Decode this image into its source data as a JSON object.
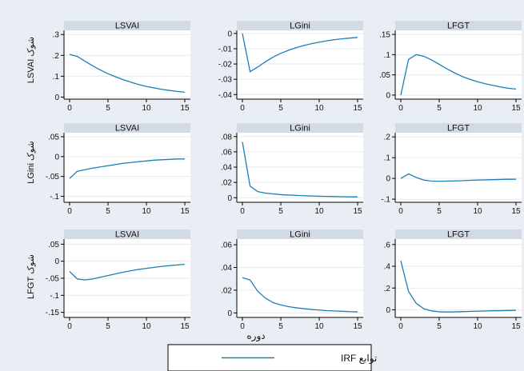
{
  "xlabel": "دوره",
  "legend": {
    "label": "توابع IRF",
    "color": "#1a7fb5"
  },
  "row_labels": [
    "شوک LSVAI",
    "شوک LGini",
    "شوک LFGT"
  ],
  "chart_data": [
    {
      "type": "line",
      "title": "LSVAI",
      "xlim": [
        0,
        15
      ],
      "xticks": [
        0,
        5,
        10,
        15
      ],
      "ylim": [
        -0.01,
        0.32
      ],
      "yticks": [
        0,
        0.1,
        0.2,
        0.3
      ],
      "ytick_labels": [
        "0",
        ".1",
        ".2",
        ".3"
      ],
      "x": [
        0,
        1,
        2,
        3,
        4,
        5,
        6,
        7,
        8,
        9,
        10,
        11,
        12,
        13,
        14,
        15
      ],
      "series": [
        {
          "values": [
            0.205,
            0.195,
            0.172,
            0.15,
            0.13,
            0.112,
            0.097,
            0.083,
            0.071,
            0.06,
            0.051,
            0.044,
            0.037,
            0.032,
            0.027,
            0.023
          ]
        }
      ]
    },
    {
      "type": "line",
      "title": "LGini",
      "xlim": [
        0,
        15
      ],
      "xticks": [
        0,
        5,
        10,
        15
      ],
      "ylim": [
        -0.043,
        0.002
      ],
      "yticks": [
        0,
        -0.01,
        -0.02,
        -0.03,
        -0.04
      ],
      "ytick_labels": [
        "0",
        "-.01",
        "-.02",
        "-.03",
        "-.04"
      ],
      "x": [
        0,
        1,
        2,
        3,
        4,
        5,
        6,
        7,
        8,
        9,
        10,
        11,
        12,
        13,
        14,
        15
      ],
      "series": [
        {
          "values": [
            0,
            -0.025,
            -0.022,
            -0.0185,
            -0.0155,
            -0.013,
            -0.011,
            -0.0093,
            -0.0079,
            -0.0067,
            -0.0057,
            -0.0048,
            -0.0041,
            -0.0035,
            -0.003,
            -0.0026
          ]
        }
      ]
    },
    {
      "type": "line",
      "title": "LFGT",
      "xlim": [
        0,
        15
      ],
      "xticks": [
        0,
        5,
        10,
        15
      ],
      "ylim": [
        -0.01,
        0.16
      ],
      "yticks": [
        0,
        0.05,
        0.1,
        0.15
      ],
      "ytick_labels": [
        "0",
        ".05",
        ".1",
        ".15"
      ],
      "x": [
        0,
        1,
        2,
        3,
        4,
        5,
        6,
        7,
        8,
        9,
        10,
        11,
        12,
        13,
        14,
        15
      ],
      "series": [
        {
          "values": [
            0,
            0.088,
            0.1,
            0.096,
            0.087,
            0.076,
            0.065,
            0.055,
            0.046,
            0.039,
            0.033,
            0.028,
            0.024,
            0.02,
            0.017,
            0.015
          ]
        }
      ]
    },
    {
      "type": "line",
      "title": "LSVAI",
      "xlim": [
        0,
        15
      ],
      "xticks": [
        0,
        5,
        10,
        15
      ],
      "ylim": [
        -0.115,
        0.06
      ],
      "yticks": [
        0.05,
        0,
        -0.05,
        -0.1
      ],
      "ytick_labels": [
        ".05",
        "0",
        "-.05",
        "-.1"
      ],
      "x": [
        0,
        1,
        2,
        3,
        4,
        5,
        6,
        7,
        8,
        9,
        10,
        11,
        12,
        13,
        14,
        15
      ],
      "series": [
        {
          "values": [
            -0.055,
            -0.037,
            -0.033,
            -0.029,
            -0.026,
            -0.023,
            -0.02,
            -0.017,
            -0.015,
            -0.013,
            -0.011,
            -0.009,
            -0.008,
            -0.007,
            -0.006,
            -0.006
          ]
        }
      ]
    },
    {
      "type": "line",
      "title": "LGini",
      "xlim": [
        0,
        15
      ],
      "xticks": [
        0,
        5,
        10,
        15
      ],
      "ylim": [
        -0.006,
        0.085
      ],
      "yticks": [
        0,
        0.02,
        0.04,
        0.06,
        0.08
      ],
      "ytick_labels": [
        "0",
        ".02",
        ".04",
        ".06",
        ".08"
      ],
      "x": [
        0,
        1,
        2,
        3,
        4,
        5,
        6,
        7,
        8,
        9,
        10,
        11,
        12,
        13,
        14,
        15
      ],
      "series": [
        {
          "values": [
            0.073,
            0.015,
            0.008,
            0.006,
            0.005,
            0.004,
            0.0035,
            0.003,
            0.0026,
            0.0022,
            0.0019,
            0.0017,
            0.0015,
            0.0013,
            0.0011,
            0.001
          ]
        }
      ]
    },
    {
      "type": "line",
      "title": "LFGT",
      "xlim": [
        0,
        15
      ],
      "xticks": [
        0,
        5,
        10,
        15
      ],
      "ylim": [
        -0.115,
        0.22
      ],
      "yticks": [
        -0.1,
        0,
        0.1,
        0.2
      ],
      "ytick_labels": [
        "-.1",
        "0",
        ".1",
        ".2"
      ],
      "x": [
        0,
        1,
        2,
        3,
        4,
        5,
        6,
        7,
        8,
        9,
        10,
        11,
        12,
        13,
        14,
        15
      ],
      "series": [
        {
          "values": [
            0,
            0.022,
            0.005,
            -0.008,
            -0.013,
            -0.014,
            -0.013,
            -0.012,
            -0.011,
            -0.009,
            -0.008,
            -0.007,
            -0.006,
            -0.005,
            -0.004,
            -0.004
          ]
        }
      ]
    },
    {
      "type": "line",
      "title": "LSVAI",
      "xlim": [
        0,
        15
      ],
      "xticks": [
        0,
        5,
        10,
        15
      ],
      "ylim": [
        -0.165,
        0.065
      ],
      "yticks": [
        0.05,
        0,
        -0.05,
        -0.1,
        -0.15
      ],
      "ytick_labels": [
        ".05",
        "0",
        "-.05",
        "-.1",
        "-.15"
      ],
      "x": [
        0,
        1,
        2,
        3,
        4,
        5,
        6,
        7,
        8,
        9,
        10,
        11,
        12,
        13,
        14,
        15
      ],
      "series": [
        {
          "values": [
            -0.03,
            -0.052,
            -0.055,
            -0.052,
            -0.047,
            -0.042,
            -0.037,
            -0.032,
            -0.028,
            -0.024,
            -0.021,
            -0.018,
            -0.015,
            -0.013,
            -0.011,
            -0.009
          ]
        }
      ]
    },
    {
      "type": "line",
      "title": "LGini",
      "xlim": [
        0,
        15
      ],
      "xticks": [
        0,
        5,
        10,
        15
      ],
      "ylim": [
        -0.004,
        0.065
      ],
      "yticks": [
        0,
        0.02,
        0.04,
        0.06
      ],
      "ytick_labels": [
        "0",
        ".02",
        ".04",
        ".06"
      ],
      "x": [
        0,
        1,
        2,
        3,
        4,
        5,
        6,
        7,
        8,
        9,
        10,
        11,
        12,
        13,
        14,
        15
      ],
      "series": [
        {
          "values": [
            0.031,
            0.029,
            0.019,
            0.013,
            0.009,
            0.007,
            0.0055,
            0.0045,
            0.0037,
            0.003,
            0.0025,
            0.002,
            0.0017,
            0.0014,
            0.0011,
            0.0009
          ]
        }
      ]
    },
    {
      "type": "line",
      "title": "LFGT",
      "xlim": [
        0,
        15
      ],
      "xticks": [
        0,
        5,
        10,
        15
      ],
      "ylim": [
        -0.07,
        0.65
      ],
      "yticks": [
        0,
        0.2,
        0.4,
        0.6
      ],
      "ytick_labels": [
        "0",
        ".2",
        ".4",
        ".6"
      ],
      "x": [
        0,
        1,
        2,
        3,
        4,
        5,
        6,
        7,
        8,
        9,
        10,
        11,
        12,
        13,
        14,
        15
      ],
      "series": [
        {
          "values": [
            0.45,
            0.17,
            0.06,
            0.01,
            -0.01,
            -0.018,
            -0.02,
            -0.019,
            -0.017,
            -0.015,
            -0.013,
            -0.011,
            -0.009,
            -0.008,
            -0.006,
            -0.005
          ]
        }
      ]
    }
  ]
}
